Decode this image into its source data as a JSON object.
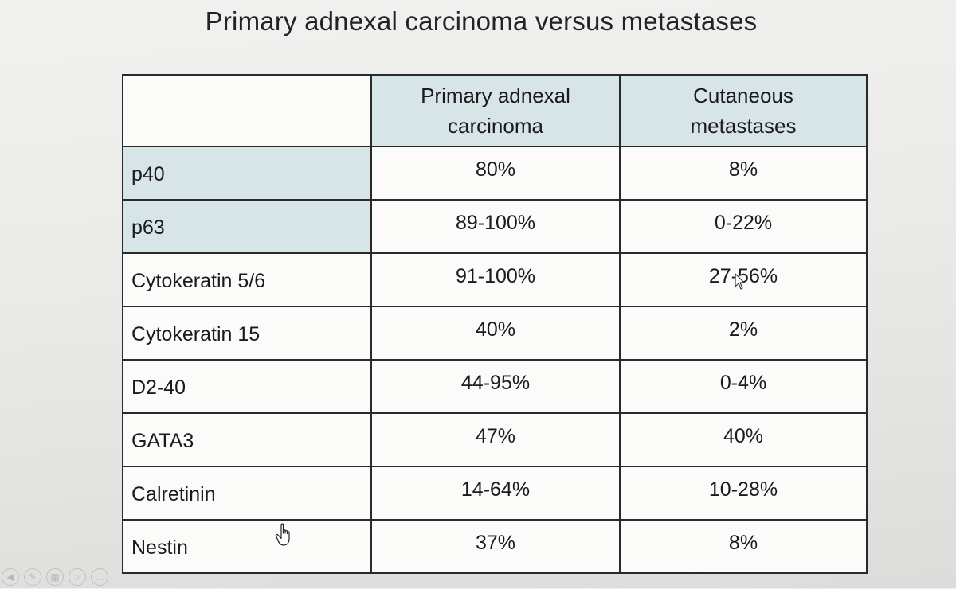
{
  "title": "Primary adnexal carcinoma versus metastases",
  "table": {
    "headers": [
      "",
      "Primary adnexal carcinoma",
      "Cutaneous metastases"
    ],
    "rows": [
      {
        "marker": "p40",
        "primary": "80%",
        "metastases": "8%",
        "highlighted": true
      },
      {
        "marker": "p63",
        "primary": "89-100%",
        "metastases": "0-22%",
        "highlighted": true
      },
      {
        "marker": "Cytokeratin 5/6",
        "primary": "91-100%",
        "metastases": "27-56%",
        "highlighted": false
      },
      {
        "marker": "Cytokeratin 15",
        "primary": "40%",
        "metastases": "2%",
        "highlighted": false
      },
      {
        "marker": "D2-40",
        "primary": "44-95%",
        "metastases": "0-4%",
        "highlighted": false
      },
      {
        "marker": "GATA3",
        "primary": "47%",
        "metastases": "40%",
        "highlighted": false
      },
      {
        "marker": "Calretinin",
        "primary": "14-64%",
        "metastases": "10-28%",
        "highlighted": false
      },
      {
        "marker": "Nestin",
        "primary": "37%",
        "metastases": "8%",
        "highlighted": false
      }
    ]
  },
  "toolbar": {
    "icons": [
      "back-icon",
      "pen-icon",
      "slides-icon",
      "zoom-icon",
      "more-icon"
    ],
    "glyphs": [
      "◀",
      "✎",
      "▦",
      "⌕",
      "…"
    ]
  },
  "colors": {
    "header_fill": "#d7e4e8",
    "border": "#2a2a2a"
  }
}
